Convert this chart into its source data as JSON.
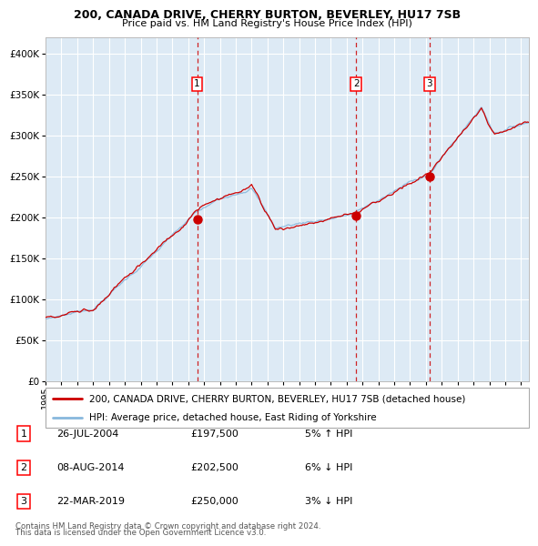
{
  "title1": "200, CANADA DRIVE, CHERRY BURTON, BEVERLEY, HU17 7SB",
  "title2": "Price paid vs. HM Land Registry's House Price Index (HPI)",
  "legend1": "200, CANADA DRIVE, CHERRY BURTON, BEVERLEY, HU17 7SB (detached house)",
  "legend2": "HPI: Average price, detached house, East Riding of Yorkshire",
  "sale_points": [
    {
      "label": "1",
      "date_num": 2004.56,
      "price": 197500,
      "pct": "5%",
      "dir": "↑",
      "date_str": "26-JUL-2004",
      "price_str": "£197,500"
    },
    {
      "label": "2",
      "date_num": 2014.6,
      "price": 202500,
      "pct": "6%",
      "dir": "↓",
      "date_str": "08-AUG-2014",
      "price_str": "£202,500"
    },
    {
      "label": "3",
      "date_num": 2019.22,
      "price": 250000,
      "pct": "3%",
      "dir": "↓",
      "date_str": "22-MAR-2019",
      "price_str": "£250,000"
    }
  ],
  "red_line_color": "#cc0000",
  "blue_line_color": "#88b8dd",
  "bg_color": "#ddeaf5",
  "grid_color": "#ffffff",
  "vline_color": "#cc0000",
  "dot_color": "#cc0000",
  "ylim": [
    0,
    420000
  ],
  "yticks": [
    0,
    50000,
    100000,
    150000,
    200000,
    250000,
    300000,
    350000,
    400000
  ],
  "xlim_start": 1995,
  "xlim_end": 2025.5,
  "footer1": "Contains HM Land Registry data © Crown copyright and database right 2024.",
  "footer2": "This data is licensed under the Open Government Licence v3.0."
}
